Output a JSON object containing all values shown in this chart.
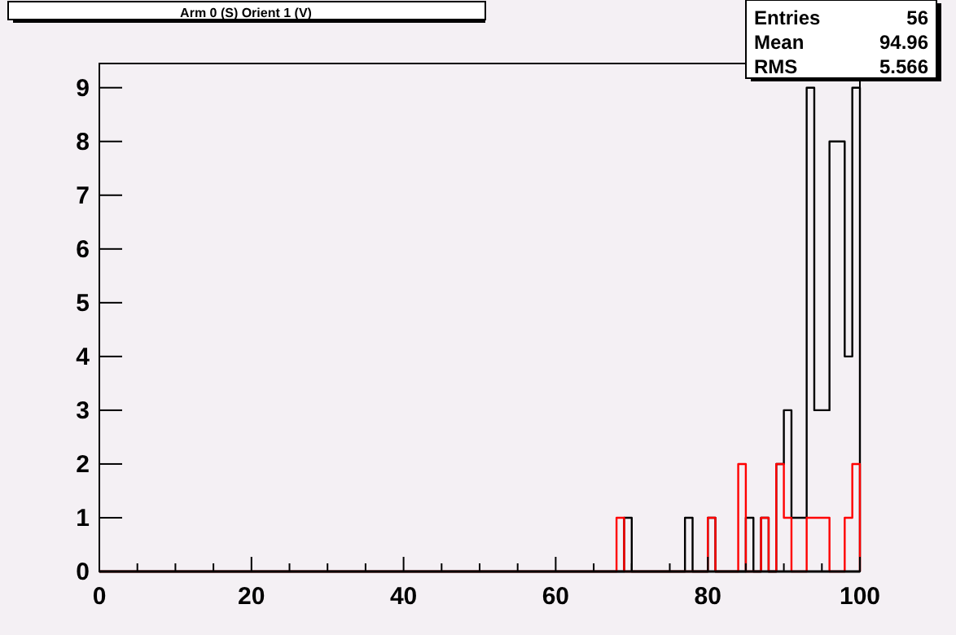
{
  "chart_data": {
    "type": "histogram",
    "title": "Arm 0 (S) Orient 1 (V)",
    "bins": [
      0,
      68,
      69,
      70,
      71,
      72,
      73,
      74,
      75,
      76,
      77,
      78,
      79,
      80,
      81,
      82,
      83,
      84,
      85,
      86,
      87,
      88,
      89,
      90,
      91,
      92,
      93,
      94,
      95,
      96,
      97,
      98,
      99,
      100
    ],
    "series": [
      {
        "color": "#000000",
        "values": [
          0,
          0,
          1,
          0,
          0,
          0,
          0,
          0,
          0,
          0,
          1,
          0,
          0,
          1,
          0,
          0,
          0,
          0,
          1,
          0,
          1,
          0,
          2,
          3,
          1,
          1,
          9,
          3,
          3,
          8,
          8,
          4,
          9
        ]
      },
      {
        "color": "#ff0000",
        "values": [
          0,
          1,
          0,
          0,
          0,
          0,
          0,
          0,
          0,
          0,
          0,
          0,
          0,
          1,
          0,
          0,
          0,
          2,
          0,
          0,
          1,
          0,
          2,
          1,
          0,
          0,
          1,
          1,
          1,
          0,
          0,
          1,
          2
        ]
      }
    ],
    "xlim": [
      0,
      100
    ],
    "xticks": [
      0,
      {
        "value": 5,
        "label": null
      },
      {
        "value": 10,
        "label": null
      },
      {
        "value": 15,
        "label": null
      },
      20,
      {
        "value": 25,
        "label": null
      },
      {
        "value": 30,
        "label": null
      },
      {
        "value": 35,
        "label": null
      },
      40,
      {
        "value": 45,
        "label": null
      },
      {
        "value": 50,
        "label": null
      },
      {
        "value": 55,
        "label": null
      },
      60,
      {
        "value": 65,
        "label": null
      },
      {
        "value": 70,
        "label": null
      },
      {
        "value": 75,
        "label": null
      },
      80,
      {
        "value": 85,
        "label": null
      },
      {
        "value": 90,
        "label": null
      },
      {
        "value": 95,
        "label": null
      },
      100
    ],
    "ylim": [
      0,
      9.45
    ],
    "yticks": [
      0,
      1,
      2,
      3,
      4,
      5,
      6,
      7,
      8,
      9
    ],
    "annotations": [
      "Entries",
      "56",
      "Mean",
      "94.96",
      "RMS",
      "5.566"
    ]
  }
}
